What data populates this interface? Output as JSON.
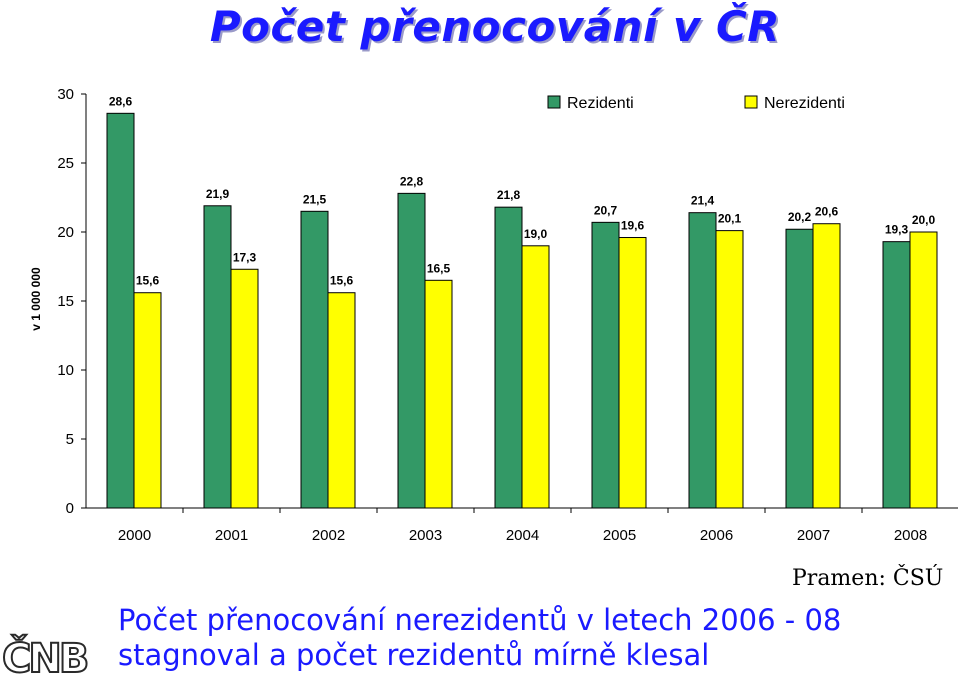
{
  "title": "Počet přenocování v ČR",
  "chart_data": {
    "type": "bar",
    "ylabel": "v 1 000 000",
    "ylim": [
      0,
      30
    ],
    "yticks": [
      "0",
      "5",
      "10",
      "15",
      "20",
      "25",
      "30"
    ],
    "categories": [
      "2000",
      "2001",
      "2002",
      "2003",
      "2004",
      "2005",
      "2006",
      "2007",
      "2008"
    ],
    "series": [
      {
        "name": "Rezidenti",
        "color": "#339966",
        "values": [
          28.6,
          21.9,
          21.5,
          22.8,
          21.8,
          20.7,
          21.4,
          20.2,
          19.3
        ],
        "labels": [
          "28,6",
          "21,9",
          "21,5",
          "22,8",
          "21,8",
          "20,7",
          "21,4",
          "20,2",
          "19,3"
        ]
      },
      {
        "name": "Nerezidenti",
        "color": "#ffff00",
        "values": [
          15.6,
          17.3,
          15.6,
          16.5,
          19.0,
          19.6,
          20.1,
          20.6,
          20.0
        ],
        "labels": [
          "15,6",
          "17,3",
          "15,6",
          "16,5",
          "19,0",
          "19,6",
          "20,1",
          "20,6",
          "20,0"
        ]
      }
    ],
    "legend_position": "top-right",
    "grid": false
  },
  "source": "Pramen: ČSÚ",
  "summary": {
    "line1": "Počet přenocování nerezidentů v letech 2006 - 08",
    "line2": "stagnoval a počet rezidentů mírně klesal"
  },
  "logo": "ČNB"
}
